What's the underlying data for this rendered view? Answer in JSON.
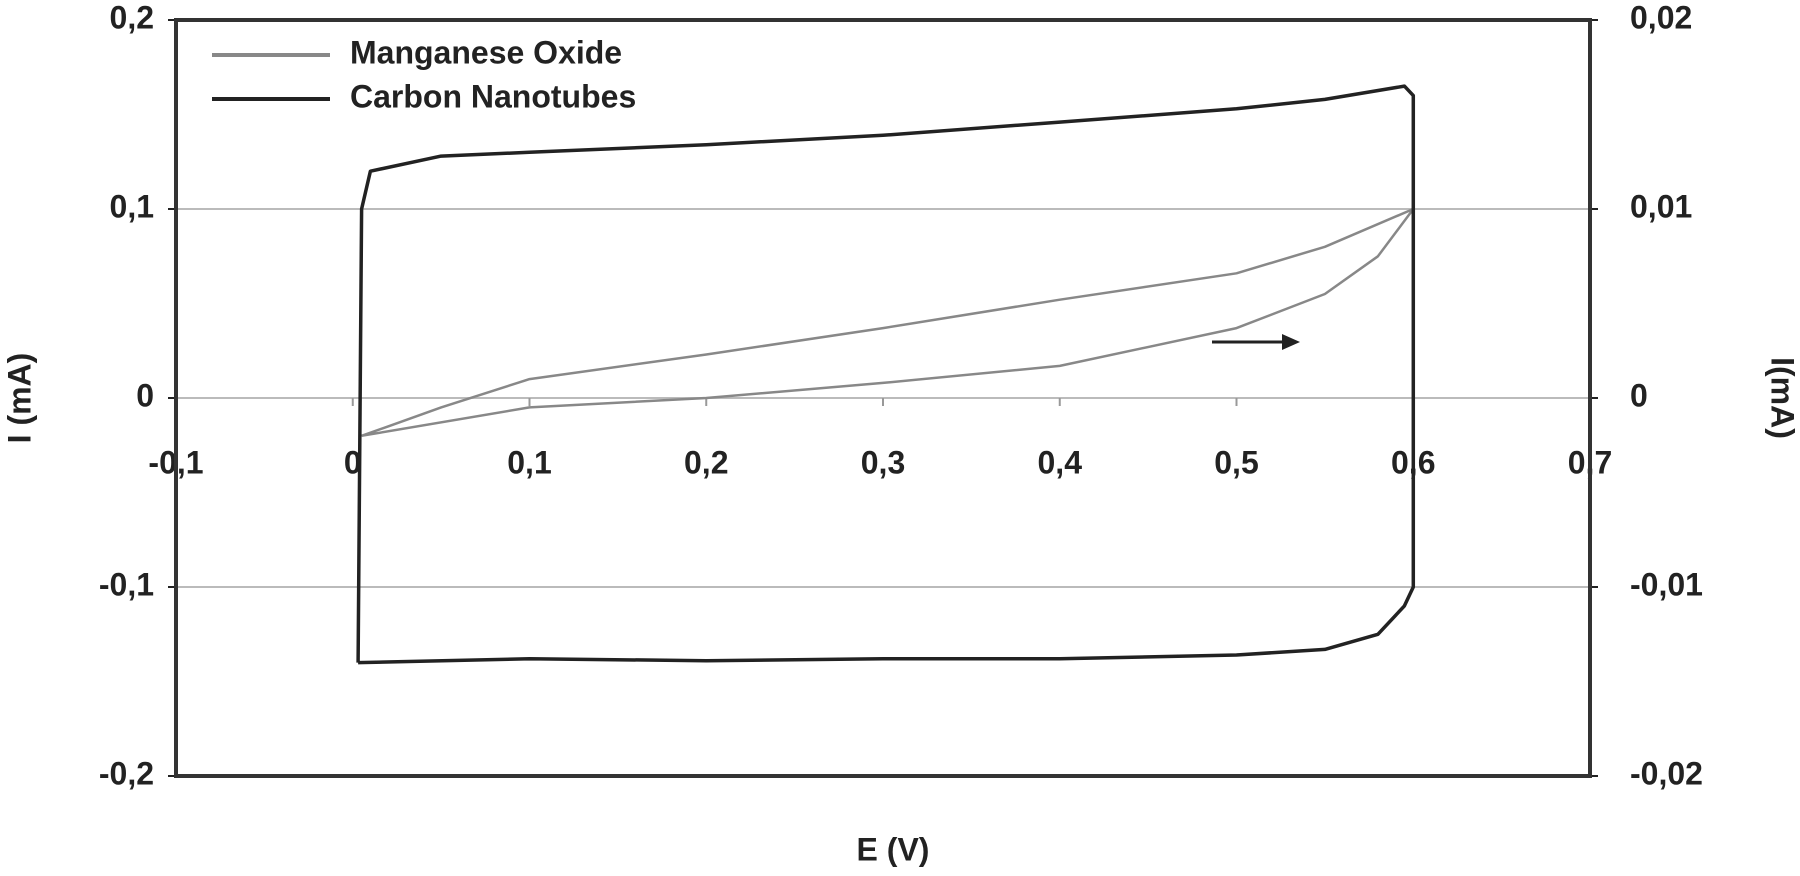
{
  "chart_data": {
    "type": "line",
    "x_label": "E (V)",
    "y_label": "I (mA)",
    "y2_label": "I(mA)",
    "xlim": [
      -0.1,
      0.7
    ],
    "xticks": [
      {
        "value": -0.1,
        "label": "-0,1"
      },
      0,
      {
        "value": 0.1,
        "label": "0,1"
      },
      {
        "value": 0.2,
        "label": "0,2"
      },
      {
        "value": 0.3,
        "label": "0,3"
      },
      {
        "value": 0.4,
        "label": "0,4"
      },
      {
        "value": 0.5,
        "label": "0,5"
      },
      {
        "value": 0.6,
        "label": "0,6"
      },
      {
        "value": 0.7,
        "label": "0,7"
      }
    ],
    "ylim": [
      -0.2,
      0.2
    ],
    "yticks": [
      {
        "value": 0.2,
        "label": "0,2"
      },
      {
        "value": 0.1,
        "label": "0,1"
      },
      0,
      {
        "value": -0.1,
        "label": "-0,1"
      },
      {
        "value": -0.2,
        "label": "-0,2"
      }
    ],
    "y2lim": [
      -0.02,
      0.02
    ],
    "y2ticks": [
      {
        "value": 0.02,
        "label": "0,02"
      },
      {
        "value": 0.01,
        "label": "0,01"
      },
      0,
      {
        "value": -0.01,
        "label": "-0,01"
      },
      {
        "value": -0.02,
        "label": "-0,02"
      }
    ],
    "grid": true,
    "legend": "top-left",
    "series": [
      {
        "name": "Manganese Oxide",
        "color": "#888888",
        "axis": "y2",
        "x": [
          0.005,
          0.1,
          0.2,
          0.3,
          0.4,
          0.5,
          0.55,
          0.58,
          0.6,
          0.55,
          0.5,
          0.4,
          0.3,
          0.2,
          0.1,
          0.05,
          0.02,
          0.005
        ],
        "values": [
          -0.002,
          -0.0005,
          0.0,
          0.0008,
          0.0017,
          0.0037,
          0.0055,
          0.0075,
          0.01,
          0.008,
          0.0066,
          0.0052,
          0.0037,
          0.0023,
          0.001,
          -0.0005,
          -0.0015,
          -0.002
        ]
      },
      {
        "name": "Carbon Nanotubes",
        "color": "#222222",
        "x": [
          0.003,
          0.005,
          0.01,
          0.05,
          0.1,
          0.2,
          0.3,
          0.4,
          0.5,
          0.55,
          0.595,
          0.6,
          0.6,
          0.6,
          0.595,
          0.58,
          0.55,
          0.5,
          0.4,
          0.3,
          0.2,
          0.1,
          0.003
        ],
        "values": [
          -0.14,
          0.1,
          0.12,
          0.128,
          0.13,
          0.134,
          0.139,
          0.146,
          0.153,
          0.158,
          0.165,
          0.16,
          0.1,
          -0.1,
          -0.11,
          -0.125,
          -0.133,
          -0.136,
          -0.138,
          -0.138,
          -0.139,
          -0.138,
          -0.14
        ]
      }
    ]
  }
}
